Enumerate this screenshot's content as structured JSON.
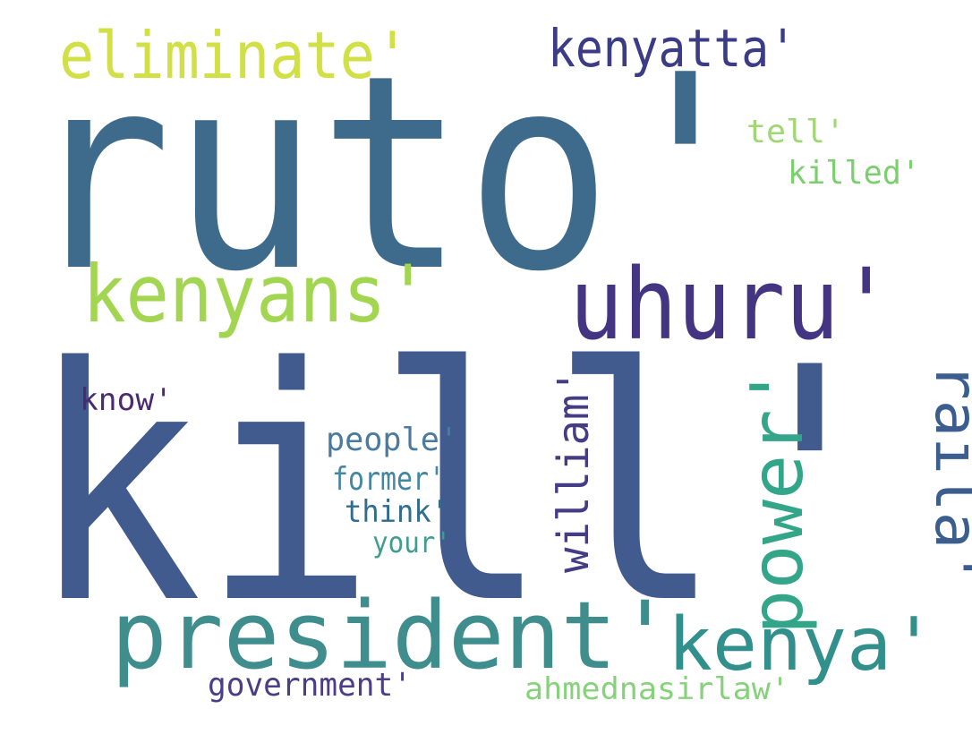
{
  "words": [
    {
      "text": "ruto'",
      "color": "#3e6a8c"
    },
    {
      "text": "kill'",
      "color": "#415b8e"
    },
    {
      "text": "eliminate'",
      "color": "#d0e046"
    },
    {
      "text": "kenyatta'",
      "color": "#3b3b86"
    },
    {
      "text": "tell'",
      "color": "#9fd872"
    },
    {
      "text": "killed'",
      "color": "#7bcf6e"
    },
    {
      "text": "kenyans'",
      "color": "#a3d650"
    },
    {
      "text": "uhuru'",
      "color": "#443583"
    },
    {
      "text": "raila'",
      "color": "#3b5e8e"
    },
    {
      "text": "power'",
      "color": "#33a68a"
    },
    {
      "text": "william'",
      "color": "#453c85"
    },
    {
      "text": "know'",
      "color": "#4a2b72"
    },
    {
      "text": "people'",
      "color": "#4a7aa0"
    },
    {
      "text": "former'",
      "color": "#4487a0"
    },
    {
      "text": "think'",
      "color": "#2f6c8e"
    },
    {
      "text": "your'",
      "color": "#3d9e90"
    },
    {
      "text": "president'",
      "color": "#3f8e8d"
    },
    {
      "text": "kenya'",
      "color": "#32908c"
    },
    {
      "text": "government'",
      "color": "#4b3d86"
    },
    {
      "text": "ahmednasirlaw'",
      "color": "#86d27a"
    }
  ]
}
